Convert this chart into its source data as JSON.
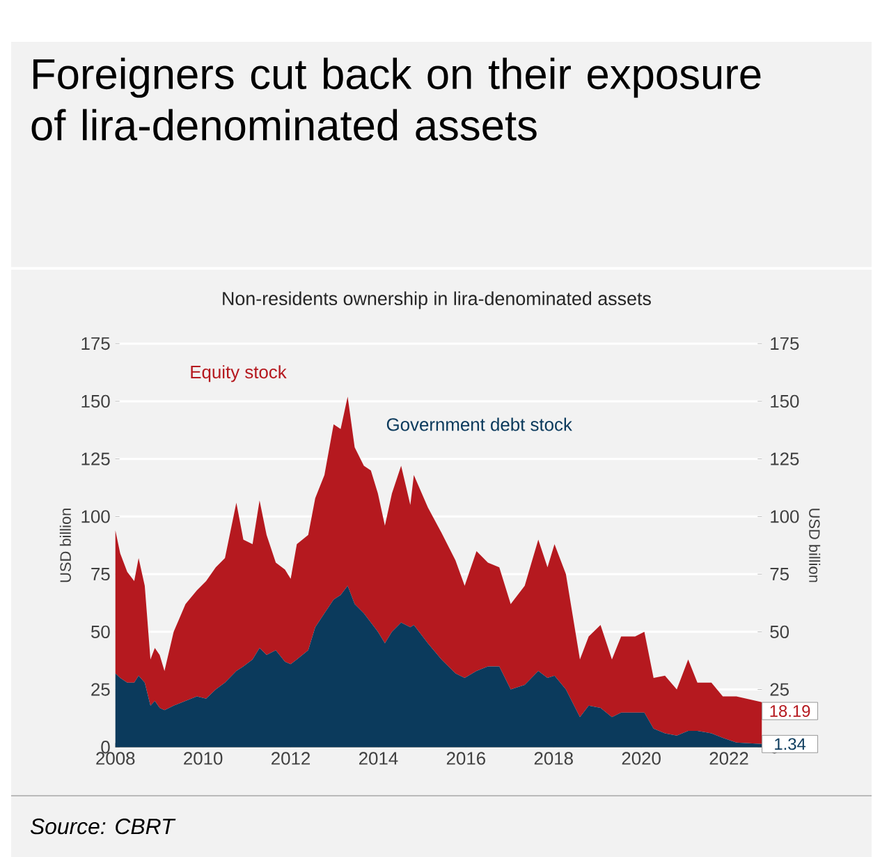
{
  "chart_data": {
    "type": "area",
    "stacked": true,
    "title": "Foreigners cut back on their exposure of lira-denominated assets",
    "subtitle": "Non-residents ownership in lira-denominated assets",
    "ylabel": "USD billion",
    "y2label": "USD billion",
    "annotations": [
      "Source: CBRT"
    ],
    "x": [
      2008.0,
      2008.11,
      2008.27,
      2008.43,
      2008.53,
      2008.67,
      2008.8,
      2008.9,
      2009.01,
      2009.12,
      2009.33,
      2009.6,
      2009.86,
      2010.07,
      2010.29,
      2010.5,
      2010.76,
      2010.92,
      2011.13,
      2011.29,
      2011.45,
      2011.66,
      2011.87,
      2012.0,
      2012.14,
      2012.4,
      2012.56,
      2012.77,
      2012.98,
      2013.14,
      2013.3,
      2013.46,
      2013.67,
      2013.83,
      2013.99,
      2014.15,
      2014.31,
      2014.52,
      2014.73,
      2014.81,
      2015.13,
      2015.44,
      2015.76,
      2015.97,
      2016.24,
      2016.5,
      2016.76,
      2017.02,
      2017.34,
      2017.65,
      2017.86,
      2018.02,
      2018.28,
      2018.6,
      2018.8,
      2019.07,
      2019.33,
      2019.54,
      2019.86,
      2020.07,
      2020.28,
      2020.54,
      2020.81,
      2021.07,
      2021.28,
      2021.6,
      2021.86,
      2022.17,
      2022.75
    ],
    "xlim": [
      2008,
      2022.75
    ],
    "xticks": [
      2008,
      2010,
      2012,
      2014,
      2016,
      2018,
      2020,
      2022
    ],
    "ylim": [
      0,
      175
    ],
    "yticks": [
      0,
      25,
      50,
      75,
      100,
      125,
      150,
      175
    ],
    "y2lim": [
      0,
      175
    ],
    "y2ticks": [
      0,
      25,
      50,
      75,
      100,
      125,
      150,
      175
    ],
    "grid": "y",
    "series": [
      {
        "name": "Government debt stock",
        "color": "#0b3a5c",
        "values": [
          32,
          30,
          28,
          28,
          31,
          28,
          18,
          20,
          17,
          16,
          18,
          20,
          22,
          21,
          25,
          28,
          33,
          35,
          38,
          43,
          40,
          42,
          37,
          36,
          38,
          42,
          52,
          58,
          64,
          66,
          70,
          62,
          58,
          54,
          50,
          45,
          50,
          54,
          52,
          53,
          45,
          38,
          32,
          30,
          33,
          35,
          35,
          25,
          27,
          33,
          30,
          31,
          25,
          13,
          18,
          17,
          13,
          15,
          15,
          15,
          8,
          6,
          5,
          7,
          7,
          6,
          4,
          2,
          1.34
        ],
        "value_labels": [
          null,
          null,
          null,
          null,
          null,
          null,
          null,
          null,
          null,
          null,
          null,
          null,
          null,
          null,
          null,
          null,
          null,
          null,
          null,
          null,
          null,
          null,
          null,
          null,
          null,
          null,
          null,
          null,
          null,
          null,
          null,
          null,
          null,
          null,
          null,
          null,
          null,
          null,
          null,
          null,
          null,
          null,
          null,
          null,
          null,
          null,
          null,
          null,
          null,
          null,
          null,
          null,
          null,
          null,
          null,
          null,
          null,
          null,
          null,
          null,
          null,
          null,
          null,
          null,
          null,
          null,
          null,
          null,
          "1.34"
        ]
      },
      {
        "name": "Equity stock",
        "color": "#b5191f",
        "values": [
          62,
          54,
          48,
          44,
          51,
          42,
          20,
          23,
          23,
          17,
          32,
          42,
          46,
          51,
          53,
          54,
          73,
          55,
          50,
          64,
          52,
          38,
          40,
          37,
          50,
          50,
          56,
          60,
          76,
          72,
          82,
          68,
          64,
          66,
          60,
          51,
          60,
          68,
          53,
          65,
          59,
          55,
          49,
          40,
          52,
          45,
          43,
          37,
          43,
          57,
          48,
          57,
          50,
          25,
          30,
          36,
          25,
          33,
          33,
          35,
          22,
          25,
          20,
          31,
          21,
          22,
          18,
          20,
          18.19
        ],
        "value_labels": [
          null,
          null,
          null,
          null,
          null,
          null,
          null,
          null,
          null,
          null,
          null,
          null,
          null,
          null,
          null,
          null,
          null,
          null,
          null,
          null,
          null,
          null,
          null,
          null,
          null,
          null,
          null,
          null,
          null,
          null,
          null,
          null,
          null,
          null,
          null,
          null,
          null,
          null,
          null,
          null,
          null,
          null,
          null,
          null,
          null,
          null,
          null,
          null,
          null,
          null,
          null,
          null,
          null,
          null,
          null,
          null,
          null,
          null,
          null,
          null,
          null,
          null,
          null,
          null,
          null,
          null,
          null,
          null,
          "18.19"
        ]
      }
    ]
  }
}
